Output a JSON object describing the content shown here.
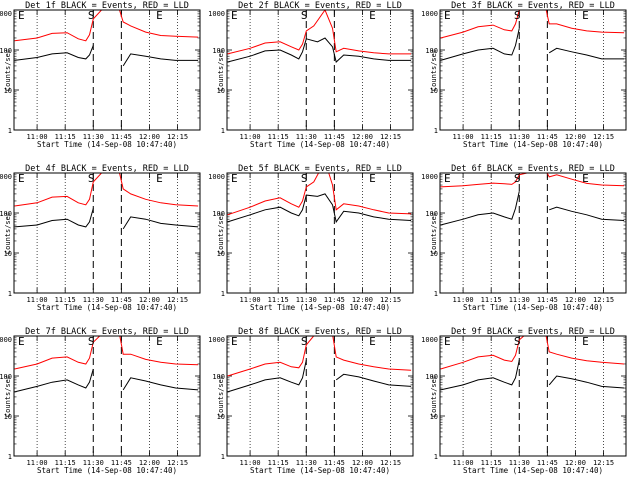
{
  "figure": {
    "ylabel": "Counts/sec",
    "xlabel": "Start Time (14-Sep-08 10:47:40)",
    "ytick_labels": [
      "1",
      "10",
      "100",
      "1000"
    ],
    "xtick_labels": [
      "11:00",
      "11:15",
      "11:30",
      "11:45",
      "12:00",
      "12:15"
    ],
    "segment_labels": [
      "E",
      "S",
      "E"
    ],
    "colors": {
      "events": "#000000",
      "lld": "#ff0000"
    }
  },
  "chart_data": [
    {
      "type": "line",
      "title": "Det 1f BLACK = Events, RED = LLD",
      "yscale": "log",
      "ylim": [
        1,
        1000
      ],
      "xlim": [
        "10:47:40",
        "12:27"
      ],
      "xticks": [
        "11:00",
        "11:15",
        "11:30",
        "11:45",
        "12:00",
        "12:15"
      ],
      "vlines_dotted": [
        "11:00",
        "11:15",
        "12:00",
        "12:15"
      ],
      "vlines_dashed": [
        "11:30",
        "11:45"
      ],
      "series": [
        {
          "name": "BLACK = Events",
          "x": [
            "10:48",
            "11:00",
            "11:08",
            "11:16",
            "11:22",
            "11:26",
            "11:28",
            "11:30",
            "11:44",
            "11:46",
            "11:50",
            "11:58",
            "12:06",
            "12:14",
            "12:26"
          ],
          "y": [
            55,
            65,
            80,
            85,
            65,
            60,
            75,
            130,
            null,
            40,
            80,
            70,
            60,
            55,
            55
          ]
        },
        {
          "name": "RED = LLD",
          "x": [
            "10:48",
            "11:00",
            "11:08",
            "11:16",
            "11:22",
            "11:26",
            "11:28",
            "11:30",
            "11:36",
            "11:44",
            "11:46",
            "11:50",
            "11:58",
            "12:06",
            "12:14",
            "12:26"
          ],
          "y": [
            170,
            200,
            260,
            270,
            190,
            170,
            240,
            600,
            1200,
            1000,
            500,
            400,
            280,
            230,
            220,
            210
          ]
        }
      ]
    },
    {
      "type": "line",
      "title": "Det 2f BLACK = Events, RED = LLD",
      "yscale": "log",
      "ylim": [
        1,
        1000
      ],
      "xlim": [
        "10:47:40",
        "12:27"
      ],
      "xticks": [
        "11:00",
        "11:15",
        "11:30",
        "11:45",
        "12:00",
        "12:15"
      ],
      "vlines_dotted": [
        "11:00",
        "11:15",
        "12:00",
        "12:15"
      ],
      "vlines_dashed": [
        "11:30",
        "11:45"
      ],
      "series": [
        {
          "name": "BLACK = Events",
          "x": [
            "10:48",
            "11:00",
            "11:08",
            "11:16",
            "11:22",
            "11:26",
            "11:28",
            "11:30",
            "11:36",
            "11:40",
            "11:44",
            "11:46",
            "11:50",
            "11:58",
            "12:06",
            "12:14",
            "12:26"
          ],
          "y": [
            50,
            70,
            95,
            100,
            75,
            60,
            90,
            190,
            160,
            200,
            120,
            50,
            75,
            70,
            60,
            55,
            55
          ]
        },
        {
          "name": "RED = LLD",
          "x": [
            "10:48",
            "11:00",
            "11:08",
            "11:16",
            "11:22",
            "11:26",
            "11:28",
            "11:30",
            "11:34",
            "11:40",
            "11:44",
            "11:46",
            "11:50",
            "11:58",
            "12:06",
            "12:14",
            "12:26"
          ],
          "y": [
            80,
            110,
            150,
            160,
            120,
            100,
            140,
            300,
            400,
            1000,
            350,
            90,
            110,
            95,
            85,
            80,
            80
          ]
        }
      ]
    },
    {
      "type": "line",
      "title": "Det 3f BLACK = Events, RED = LLD",
      "yscale": "log",
      "ylim": [
        1,
        1000
      ],
      "xlim": [
        "10:47:40",
        "12:27"
      ],
      "xticks": [
        "11:00",
        "11:15",
        "11:30",
        "11:45",
        "12:00",
        "12:15"
      ],
      "vlines_dotted": [
        "11:00",
        "11:15",
        "12:00",
        "12:15"
      ],
      "vlines_dashed": [
        "11:30",
        "11:45"
      ],
      "series": [
        {
          "name": "BLACK = Events",
          "x": [
            "10:48",
            "11:00",
            "11:08",
            "11:16",
            "11:22",
            "11:26",
            "11:28",
            "11:30",
            "11:44",
            "11:46",
            "11:50",
            "11:58",
            "12:06",
            "12:14",
            "12:26"
          ],
          "y": [
            55,
            80,
            100,
            110,
            80,
            75,
            130,
            350,
            null,
            85,
            110,
            90,
            75,
            60,
            60
          ]
        },
        {
          "name": "RED = LLD",
          "x": [
            "10:48",
            "11:00",
            "11:08",
            "11:16",
            "11:22",
            "11:26",
            "11:28",
            "11:30",
            "11:36",
            "11:44",
            "11:46",
            "11:50",
            "11:58",
            "12:06",
            "12:14",
            "12:26"
          ],
          "y": [
            200,
            280,
            380,
            420,
            320,
            300,
            450,
            1000,
            1300,
            1200,
            450,
            450,
            350,
            300,
            280,
            270
          ]
        }
      ]
    },
    {
      "type": "line",
      "title": "Det 4f BLACK = Events, RED = LLD",
      "yscale": "log",
      "ylim": [
        1,
        1000
      ],
      "xlim": [
        "10:47:40",
        "12:27"
      ],
      "xticks": [
        "11:00",
        "11:15",
        "11:30",
        "11:45",
        "12:00",
        "12:15"
      ],
      "vlines_dotted": [
        "11:00",
        "11:15",
        "12:00",
        "12:15"
      ],
      "vlines_dashed": [
        "11:30",
        "11:45"
      ],
      "series": [
        {
          "name": "BLACK = Events",
          "x": [
            "10:48",
            "11:00",
            "11:08",
            "11:16",
            "11:22",
            "11:26",
            "11:28",
            "11:30",
            "11:44",
            "11:46",
            "11:50",
            "11:58",
            "12:06",
            "12:14",
            "12:26"
          ],
          "y": [
            45,
            50,
            65,
            70,
            50,
            45,
            60,
            130,
            null,
            40,
            80,
            70,
            55,
            50,
            45
          ]
        },
        {
          "name": "RED = LLD",
          "x": [
            "10:48",
            "11:00",
            "11:08",
            "11:16",
            "11:22",
            "11:26",
            "11:28",
            "11:30",
            "11:36",
            "11:44",
            "11:46",
            "11:50",
            "11:58",
            "12:06",
            "12:14",
            "12:26"
          ],
          "y": [
            150,
            180,
            250,
            260,
            180,
            160,
            220,
            600,
            1200,
            1000,
            400,
            300,
            220,
            180,
            160,
            150
          ]
        }
      ]
    },
    {
      "type": "line",
      "title": "Det 5f BLACK = Events, RED = LLD",
      "yscale": "log",
      "ylim": [
        1,
        1000
      ],
      "xlim": [
        "10:47:40",
        "12:27"
      ],
      "xticks": [
        "11:00",
        "11:15",
        "11:30",
        "11:45",
        "12:00",
        "12:15"
      ],
      "vlines_dotted": [
        "11:00",
        "11:15",
        "12:00",
        "12:15"
      ],
      "vlines_dashed": [
        "11:30",
        "11:45"
      ],
      "series": [
        {
          "name": "BLACK = Events",
          "x": [
            "10:48",
            "11:00",
            "11:08",
            "11:16",
            "11:22",
            "11:26",
            "11:28",
            "11:30",
            "11:36",
            "11:40",
            "11:44",
            "11:46",
            "11:50",
            "11:58",
            "12:06",
            "12:14",
            "12:26"
          ],
          "y": [
            60,
            90,
            120,
            140,
            100,
            85,
            120,
            280,
            260,
            300,
            160,
            60,
            110,
            100,
            80,
            70,
            65
          ]
        },
        {
          "name": "RED = LLD",
          "x": [
            "10:48",
            "11:00",
            "11:08",
            "11:16",
            "11:22",
            "11:26",
            "11:28",
            "11:30",
            "11:34",
            "11:40",
            "11:44",
            "11:46",
            "11:50",
            "11:58",
            "12:06",
            "12:14",
            "12:26"
          ],
          "y": [
            90,
            140,
            200,
            240,
            170,
            140,
            200,
            450,
            600,
            2000,
            500,
            120,
            170,
            150,
            120,
            100,
            95
          ]
        }
      ]
    },
    {
      "type": "line",
      "title": "Det 6f BLACK = Events, RED = LLD",
      "yscale": "log",
      "ylim": [
        1,
        1000
      ],
      "xlim": [
        "10:47:40",
        "12:27"
      ],
      "xticks": [
        "11:00",
        "11:15",
        "11:30",
        "11:45",
        "12:00",
        "12:15"
      ],
      "vlines_dotted": [
        "11:00",
        "11:15",
        "12:00",
        "12:15"
      ],
      "vlines_dashed": [
        "11:30",
        "11:45"
      ],
      "series": [
        {
          "name": "BLACK = Events",
          "x": [
            "10:48",
            "11:00",
            "11:08",
            "11:16",
            "11:22",
            "11:26",
            "11:28",
            "11:30",
            "11:44",
            "11:46",
            "11:50",
            "11:58",
            "12:06",
            "12:14",
            "12:26"
          ],
          "y": [
            50,
            70,
            90,
            100,
            80,
            70,
            130,
            350,
            null,
            120,
            140,
            110,
            90,
            70,
            65
          ]
        },
        {
          "name": "RED = LLD",
          "x": [
            "10:48",
            "11:00",
            "11:08",
            "11:16",
            "11:22",
            "11:26",
            "11:28",
            "11:30",
            "11:34",
            "11:40",
            "11:44",
            "11:46",
            "11:50",
            "11:58",
            "12:06",
            "12:14",
            "12:26"
          ],
          "y": [
            450,
            480,
            520,
            560,
            540,
            520,
            600,
            900,
            1000,
            2500,
            1200,
            800,
            900,
            700,
            550,
            500,
            480
          ]
        }
      ]
    },
    {
      "type": "line",
      "title": "Det 7f BLACK = Events, RED = LLD",
      "yscale": "log",
      "ylim": [
        1,
        1000
      ],
      "xlim": [
        "10:47:40",
        "12:27"
      ],
      "xticks": [
        "11:00",
        "11:15",
        "11:30",
        "11:45",
        "12:00",
        "12:15"
      ],
      "vlines_dotted": [
        "11:00",
        "11:15",
        "12:00",
        "12:15"
      ],
      "vlines_dashed": [
        "11:30",
        "11:45"
      ],
      "series": [
        {
          "name": "BLACK = Events",
          "x": [
            "10:48",
            "11:00",
            "11:08",
            "11:16",
            "11:22",
            "11:26",
            "11:28",
            "11:30",
            "11:44",
            "11:46",
            "11:50",
            "11:58",
            "12:06",
            "12:14",
            "12:26"
          ],
          "y": [
            40,
            55,
            70,
            80,
            60,
            50,
            70,
            150,
            null,
            45,
            90,
            75,
            60,
            50,
            45
          ]
        },
        {
          "name": "RED = LLD",
          "x": [
            "10:48",
            "11:00",
            "11:08",
            "11:16",
            "11:22",
            "11:26",
            "11:28",
            "11:30",
            "11:36",
            "11:44",
            "11:46",
            "11:50",
            "11:58",
            "12:06",
            "12:14",
            "12:26"
          ],
          "y": [
            150,
            200,
            280,
            300,
            220,
            200,
            280,
            700,
            1300,
            1100,
            350,
            350,
            260,
            220,
            200,
            190
          ]
        }
      ]
    },
    {
      "type": "line",
      "title": "Det 8f BLACK = Events, RED = LLD",
      "yscale": "log",
      "ylim": [
        1,
        1000
      ],
      "xlim": [
        "10:47:40",
        "12:27"
      ],
      "xticks": [
        "11:00",
        "11:15",
        "11:30",
        "11:45",
        "12:00",
        "12:15"
      ],
      "vlines_dotted": [
        "11:00",
        "11:15",
        "12:00",
        "12:15"
      ],
      "vlines_dashed": [
        "11:30",
        "11:45"
      ],
      "series": [
        {
          "name": "BLACK = Events",
          "x": [
            "10:48",
            "11:00",
            "11:08",
            "11:16",
            "11:22",
            "11:26",
            "11:28",
            "11:30",
            "11:44",
            "11:46",
            "11:50",
            "11:58",
            "12:06",
            "12:14",
            "12:26"
          ],
          "y": [
            40,
            60,
            80,
            90,
            70,
            60,
            90,
            250,
            null,
            80,
            110,
            95,
            75,
            60,
            55
          ]
        },
        {
          "name": "RED = LLD",
          "x": [
            "10:48",
            "11:00",
            "11:08",
            "11:16",
            "11:22",
            "11:26",
            "11:28",
            "11:30",
            "11:36",
            "11:44",
            "11:46",
            "11:50",
            "11:58",
            "12:06",
            "12:14",
            "12:26"
          ],
          "y": [
            100,
            150,
            200,
            220,
            170,
            160,
            220,
            600,
            1300,
            1100,
            300,
            250,
            200,
            170,
            150,
            140
          ]
        }
      ]
    },
    {
      "type": "line",
      "title": "Det 9f BLACK = Events, RED = LLD",
      "yscale": "log",
      "ylim": [
        1,
        1000
      ],
      "xlim": [
        "10:47:40",
        "12:27"
      ],
      "xticks": [
        "11:00",
        "11:15",
        "11:30",
        "11:45",
        "12:00",
        "12:15"
      ],
      "vlines_dotted": [
        "11:00",
        "11:15",
        "12:00",
        "12:15"
      ],
      "vlines_dashed": [
        "11:30",
        "11:45"
      ],
      "series": [
        {
          "name": "BLACK = Events",
          "x": [
            "10:48",
            "11:00",
            "11:08",
            "11:16",
            "11:22",
            "11:26",
            "11:28",
            "11:30",
            "11:44",
            "11:46",
            "11:50",
            "11:58",
            "12:06",
            "12:14",
            "12:26"
          ],
          "y": [
            45,
            60,
            80,
            90,
            70,
            60,
            90,
            250,
            null,
            60,
            100,
            85,
            70,
            55,
            50
          ]
        },
        {
          "name": "RED = LLD",
          "x": [
            "10:48",
            "11:00",
            "11:08",
            "11:16",
            "11:22",
            "11:26",
            "11:28",
            "11:30",
            "11:36",
            "11:44",
            "11:46",
            "11:50",
            "11:58",
            "12:06",
            "12:14",
            "12:26"
          ],
          "y": [
            150,
            220,
            300,
            330,
            250,
            230,
            330,
            800,
            1400,
            1200,
            400,
            350,
            280,
            240,
            220,
            200
          ]
        }
      ]
    }
  ]
}
